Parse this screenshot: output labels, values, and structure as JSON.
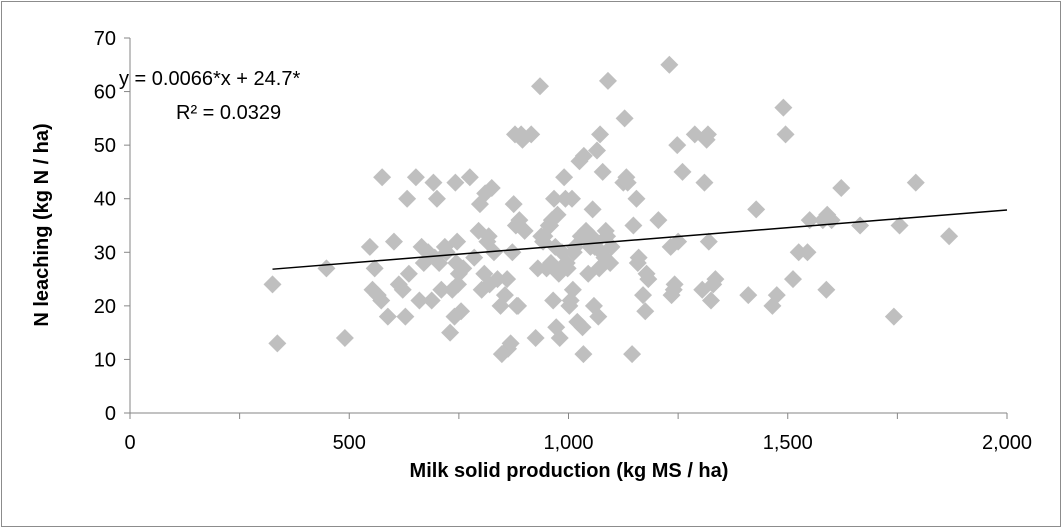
{
  "chart_data": {
    "type": "scatter",
    "title": "",
    "xlabel": "Milk solid production (kg MS / ha)",
    "ylabel": "N leaching (kg N / ha)",
    "xlim": [
      0,
      2000
    ],
    "ylim": [
      0,
      70
    ],
    "x_ticks": [
      0,
      500,
      1000,
      1500,
      2000
    ],
    "x_tick_labels": [
      "0",
      "500",
      "1,000",
      "1,500",
      "2,000"
    ],
    "y_ticks": [
      0,
      10,
      20,
      30,
      40,
      50,
      60,
      70
    ],
    "y_tick_labels": [
      "0",
      "10",
      "20",
      "30",
      "40",
      "50",
      "60",
      "70"
    ],
    "grid": false,
    "legend": "none",
    "marker_color": "#bfbfbf",
    "trendline_color": "#000000",
    "annotations": [
      "y = 0.0066*x + 24.7*",
      "R² = 0.0329"
    ],
    "trendline": {
      "slope": 0.0066,
      "intercept": 24.7,
      "x_range": [
        325,
        2000
      ]
    },
    "points": [
      [
        325,
        24
      ],
      [
        336,
        13
      ],
      [
        448,
        27
      ],
      [
        490,
        14
      ],
      [
        547,
        31
      ],
      [
        553,
        23
      ],
      [
        558,
        27
      ],
      [
        565,
        22
      ],
      [
        573,
        21
      ],
      [
        575,
        44
      ],
      [
        588,
        18
      ],
      [
        602,
        32
      ],
      [
        613,
        24
      ],
      [
        622,
        23
      ],
      [
        628,
        18
      ],
      [
        632,
        40
      ],
      [
        636,
        26
      ],
      [
        652,
        44
      ],
      [
        660,
        21
      ],
      [
        665,
        31
      ],
      [
        670,
        28
      ],
      [
        680,
        30
      ],
      [
        688,
        21
      ],
      [
        692,
        43
      ],
      [
        695,
        29
      ],
      [
        700,
        40
      ],
      [
        705,
        28
      ],
      [
        710,
        23
      ],
      [
        718,
        31
      ],
      [
        722,
        30
      ],
      [
        730,
        15
      ],
      [
        735,
        23
      ],
      [
        740,
        18
      ],
      [
        742,
        43
      ],
      [
        744,
        28
      ],
      [
        746,
        32
      ],
      [
        748,
        24
      ],
      [
        750,
        26
      ],
      [
        755,
        19
      ],
      [
        760,
        27
      ],
      [
        775,
        44
      ],
      [
        785,
        29
      ],
      [
        795,
        34
      ],
      [
        798,
        39
      ],
      [
        802,
        23
      ],
      [
        808,
        26
      ],
      [
        810,
        41
      ],
      [
        815,
        32
      ],
      [
        818,
        33
      ],
      [
        820,
        24
      ],
      [
        825,
        42
      ],
      [
        830,
        30
      ],
      [
        838,
        25
      ],
      [
        845,
        20
      ],
      [
        848,
        11
      ],
      [
        855,
        22
      ],
      [
        860,
        25
      ],
      [
        862,
        12
      ],
      [
        868,
        13
      ],
      [
        872,
        30
      ],
      [
        875,
        39
      ],
      [
        878,
        52
      ],
      [
        880,
        35
      ],
      [
        882,
        20
      ],
      [
        885,
        20
      ],
      [
        888,
        36
      ],
      [
        892,
        52
      ],
      [
        895,
        51
      ],
      [
        900,
        34
      ],
      [
        915,
        52
      ],
      [
        925,
        14
      ],
      [
        930,
        27
      ],
      [
        935,
        61
      ],
      [
        938,
        33
      ],
      [
        942,
        32
      ],
      [
        945,
        33
      ],
      [
        950,
        27
      ],
      [
        955,
        35
      ],
      [
        958,
        35
      ],
      [
        960,
        28
      ],
      [
        962,
        36
      ],
      [
        965,
        21
      ],
      [
        967,
        40
      ],
      [
        970,
        31
      ],
      [
        972,
        16
      ],
      [
        975,
        37
      ],
      [
        978,
        26
      ],
      [
        980,
        14
      ],
      [
        982,
        27
      ],
      [
        985,
        30
      ],
      [
        990,
        44
      ],
      [
        993,
        40
      ],
      [
        996,
        28
      ],
      [
        998,
        27
      ],
      [
        1002,
        20
      ],
      [
        1005,
        21
      ],
      [
        1008,
        40
      ],
      [
        1010,
        23
      ],
      [
        1012,
        30
      ],
      [
        1015,
        31
      ],
      [
        1020,
        17
      ],
      [
        1025,
        47
      ],
      [
        1028,
        33
      ],
      [
        1032,
        16
      ],
      [
        1034,
        11
      ],
      [
        1035,
        48
      ],
      [
        1038,
        33
      ],
      [
        1040,
        34
      ],
      [
        1045,
        26
      ],
      [
        1050,
        31
      ],
      [
        1052,
        33
      ],
      [
        1055,
        38
      ],
      [
        1058,
        20
      ],
      [
        1060,
        31
      ],
      [
        1063,
        32
      ],
      [
        1065,
        49
      ],
      [
        1068,
        18
      ],
      [
        1070,
        27
      ],
      [
        1072,
        52
      ],
      [
        1075,
        30
      ],
      [
        1078,
        45
      ],
      [
        1082,
        29
      ],
      [
        1085,
        34
      ],
      [
        1088,
        33
      ],
      [
        1090,
        62
      ],
      [
        1095,
        28
      ],
      [
        1098,
        31
      ],
      [
        1125,
        43
      ],
      [
        1128,
        55
      ],
      [
        1132,
        44
      ],
      [
        1135,
        43
      ],
      [
        1145,
        11
      ],
      [
        1148,
        35
      ],
      [
        1155,
        40
      ],
      [
        1158,
        28
      ],
      [
        1160,
        29
      ],
      [
        1170,
        22
      ],
      [
        1175,
        19
      ],
      [
        1178,
        26
      ],
      [
        1182,
        25
      ],
      [
        1205,
        36
      ],
      [
        1230,
        65
      ],
      [
        1233,
        31
      ],
      [
        1235,
        22
      ],
      [
        1240,
        23
      ],
      [
        1242,
        24
      ],
      [
        1248,
        50
      ],
      [
        1250,
        32
      ],
      [
        1260,
        45
      ],
      [
        1288,
        52
      ],
      [
        1305,
        23
      ],
      [
        1310,
        43
      ],
      [
        1315,
        51
      ],
      [
        1318,
        52
      ],
      [
        1320,
        32
      ],
      [
        1325,
        21
      ],
      [
        1330,
        24
      ],
      [
        1335,
        25
      ],
      [
        1410,
        22
      ],
      [
        1428,
        38
      ],
      [
        1465,
        20
      ],
      [
        1475,
        22
      ],
      [
        1490,
        57
      ],
      [
        1495,
        52
      ],
      [
        1512,
        25
      ],
      [
        1525,
        30
      ],
      [
        1545,
        30
      ],
      [
        1550,
        36
      ],
      [
        1580,
        36
      ],
      [
        1588,
        23
      ],
      [
        1590,
        37
      ],
      [
        1600,
        36
      ],
      [
        1622,
        42
      ],
      [
        1665,
        35
      ],
      [
        1742,
        18
      ],
      [
        1755,
        35
      ],
      [
        1792,
        43
      ],
      [
        1868,
        33
      ]
    ]
  }
}
